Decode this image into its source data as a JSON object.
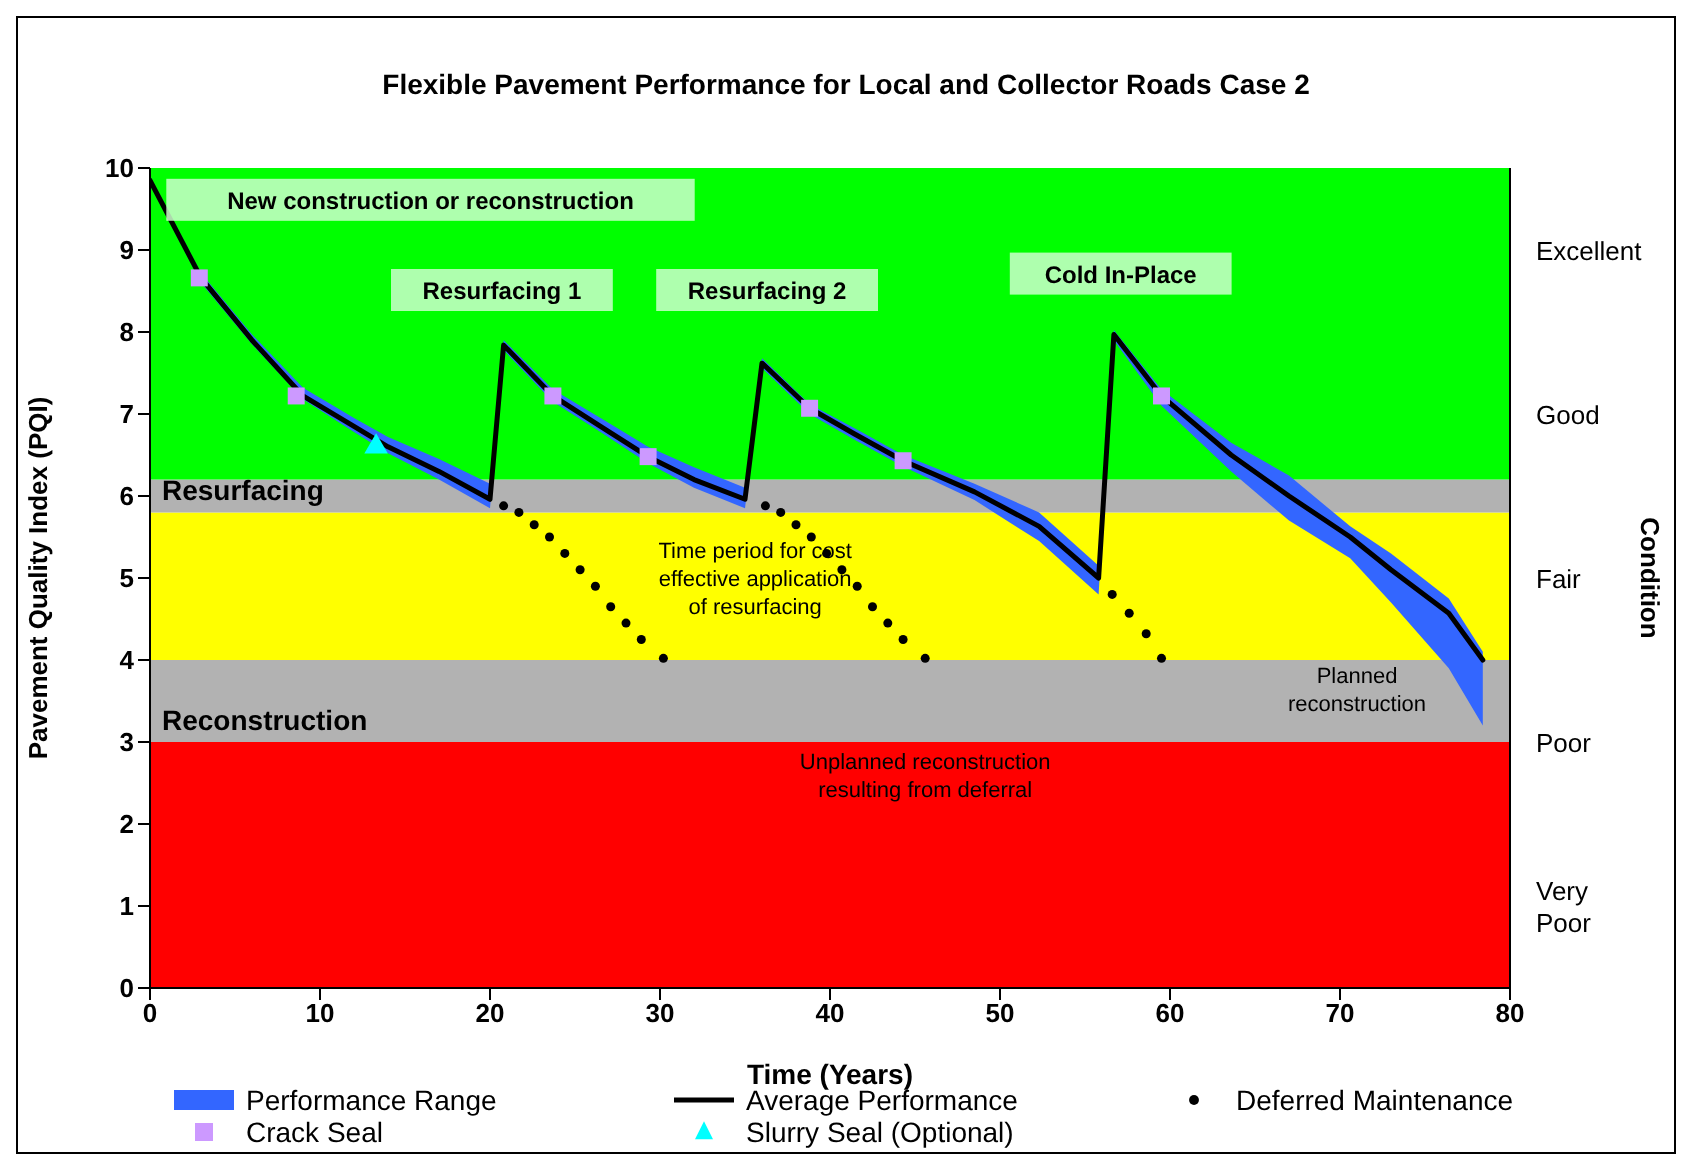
{
  "chart_data": {
    "type": "line",
    "title": "Flexible Pavement Performance for Local and Collector Roads Case 2",
    "xlabel": "Time (Years)",
    "ylabel": "Pavement Quality Index (PQI)",
    "y2label": "Condition",
    "xlim": [
      0,
      80
    ],
    "xticks": [
      0,
      10,
      20,
      30,
      40,
      50,
      60,
      70,
      80
    ],
    "ylim": [
      0,
      10
    ],
    "yticks": [
      0,
      1,
      2,
      3,
      4,
      5,
      6,
      7,
      8,
      9,
      10
    ],
    "y2_categories": [
      "Excellent",
      "Good",
      "Fair",
      "Poor",
      "Very Poor"
    ],
    "legend": "bottom",
    "bands": [
      {
        "axis": "y",
        "from": 0,
        "to": 3,
        "color": "#ff0000"
      },
      {
        "axis": "y",
        "from": 3,
        "to": 4,
        "color": "#b2b2b2",
        "label": "Reconstruction"
      },
      {
        "axis": "y",
        "from": 4,
        "to": 5.8,
        "color": "#ffff00"
      },
      {
        "axis": "y",
        "from": 5.8,
        "to": 6.2,
        "color": "#b2b2b2",
        "label": "Resurfacing"
      },
      {
        "axis": "y",
        "from": 6.2,
        "to": 10,
        "color": "#00ff00"
      }
    ],
    "series": [
      {
        "name": "Performance Range",
        "type": "area",
        "color": "#3366ff"
      },
      {
        "name": "Average Performance",
        "type": "line",
        "color": "#000000",
        "marker": "none",
        "line_style": "solid",
        "x": [
          0,
          3,
          6,
          9,
          12,
          14,
          17,
          20,
          20.8,
          23.7,
          26.5,
          29.3,
          32,
          35,
          36,
          38.8,
          41.5,
          44.3,
          48.5,
          52.3,
          55.8,
          56.7,
          59.5,
          63.6,
          67,
          70.6,
          73,
          76.4,
          78.4
        ],
        "values": [
          9.85,
          8.66,
          7.9,
          7.22,
          6.85,
          6.6,
          6.3,
          5.96,
          7.84,
          7.22,
          6.85,
          6.48,
          6.2,
          5.96,
          7.62,
          7.07,
          6.75,
          6.43,
          6.05,
          5.63,
          5.0,
          7.97,
          7.22,
          6.5,
          6.0,
          5.5,
          5.1,
          4.57,
          4.0
        ],
        "lower": [
          9.8,
          8.6,
          7.85,
          7.18,
          6.78,
          6.52,
          6.2,
          5.85,
          7.78,
          7.15,
          6.78,
          6.4,
          6.1,
          5.85,
          7.56,
          7.0,
          6.68,
          6.36,
          5.95,
          5.45,
          4.8,
          7.9,
          7.1,
          6.3,
          5.7,
          5.24,
          4.7,
          3.9,
          3.2
        ],
        "upper": [
          9.9,
          8.72,
          7.97,
          7.32,
          6.95,
          6.72,
          6.45,
          6.15,
          7.9,
          7.3,
          6.95,
          6.6,
          6.35,
          6.1,
          7.68,
          7.12,
          6.82,
          6.5,
          6.15,
          5.8,
          5.15,
          8.02,
          7.3,
          6.65,
          6.25,
          5.63,
          5.3,
          4.75,
          4.1
        ]
      },
      {
        "name": "Deferred Maintenance",
        "type": "scatter",
        "color": "#000000",
        "marker": "circle",
        "x": [
          20.8,
          21.7,
          22.6,
          23.5,
          24.4,
          25.3,
          26.2,
          27.1,
          28.0,
          28.9,
          30.2,
          36.2,
          37.1,
          38,
          38.9,
          39.8,
          40.7,
          41.6,
          42.5,
          43.4,
          44.3,
          45.6,
          56.6,
          57.6,
          58.6,
          59.5
        ],
        "values": [
          5.88,
          5.8,
          5.65,
          5.5,
          5.3,
          5.1,
          4.9,
          4.65,
          4.45,
          4.25,
          4.02,
          5.88,
          5.8,
          5.65,
          5.5,
          5.3,
          5.1,
          4.9,
          4.65,
          4.45,
          4.25,
          4.02,
          4.8,
          4.57,
          4.32,
          4.02
        ]
      },
      {
        "name": "Crack Seal",
        "type": "scatter",
        "color": "#cc99ff",
        "marker": "square",
        "x": [
          2.9,
          8.6,
          23.7,
          29.3,
          38.8,
          44.3,
          59.5
        ],
        "values": [
          8.66,
          7.22,
          7.22,
          6.48,
          7.07,
          6.43,
          7.22
        ]
      },
      {
        "name": "Slurry Seal (Optional)",
        "type": "scatter",
        "color": "#00ffff",
        "marker": "triangle",
        "x": [
          13.3
        ],
        "values": [
          6.6
        ]
      }
    ],
    "annotations": [
      "New construction or reconstruction",
      "Resurfacing 1",
      "Resurfacing 2",
      "Cold In-Place",
      "Time period for cost effective application of resurfacing",
      "Unplanned reconstruction resulting from deferral",
      "Planned reconstruction"
    ]
  }
}
